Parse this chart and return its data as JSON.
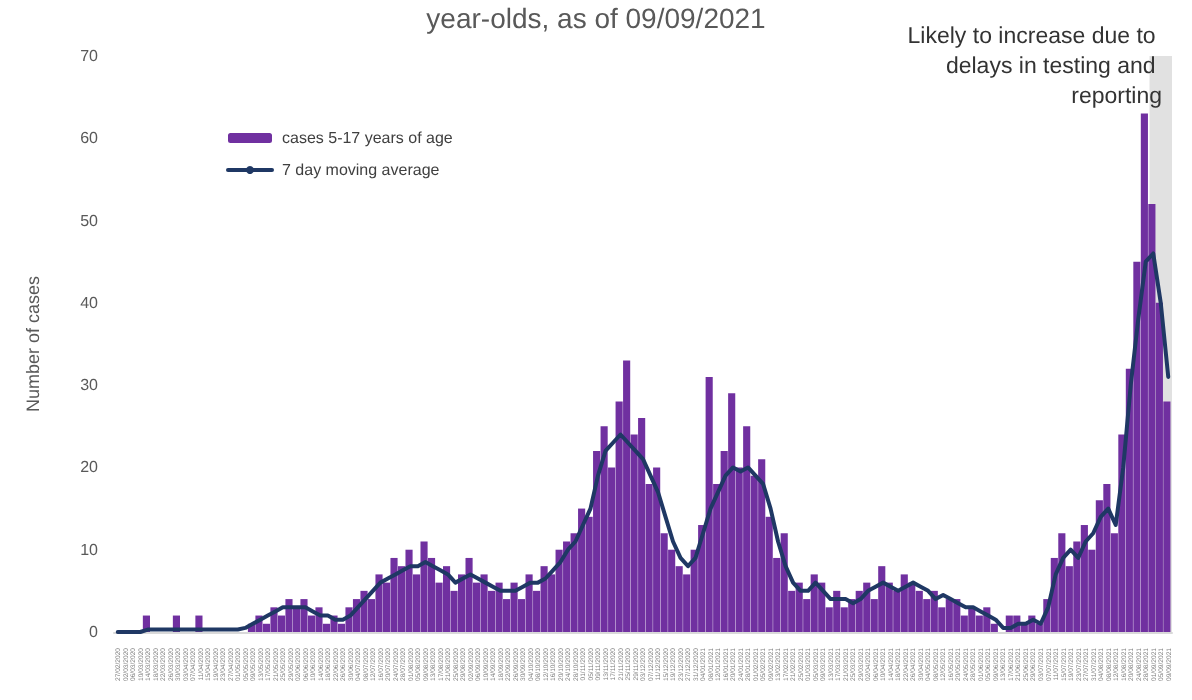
{
  "chart_data": {
    "type": "bar",
    "title": "year-olds, as of 09/09/2021",
    "ylabel": "Number of cases",
    "categories": [
      "27/02/2020",
      "02/03/2020",
      "06/03/2020",
      "10/03/2020",
      "14/03/2020",
      "18/03/2020",
      "22/03/2020",
      "26/03/2020",
      "30/03/2020",
      "03/04/2020",
      "07/04/2020",
      "11/04/2020",
      "15/04/2020",
      "19/04/2020",
      "23/04/2020",
      "27/04/2020",
      "01/05/2020",
      "05/05/2020",
      "09/05/2020",
      "13/05/2020",
      "17/05/2020",
      "21/05/2020",
      "25/05/2020",
      "29/05/2020",
      "02/06/2020",
      "06/06/2020",
      "10/06/2020",
      "14/06/2020",
      "18/06/2020",
      "22/06/2020",
      "26/06/2020",
      "30/06/2020",
      "04/07/2020",
      "08/07/2020",
      "12/07/2020",
      "16/07/2020",
      "20/07/2020",
      "24/07/2020",
      "28/07/2020",
      "01/08/2020",
      "05/08/2020",
      "09/08/2020",
      "13/08/2020",
      "17/08/2020",
      "21/08/2020",
      "25/08/2020",
      "29/08/2020",
      "02/09/2020",
      "06/09/2020",
      "10/09/2020",
      "14/09/2020",
      "18/09/2020",
      "22/09/2020",
      "26/09/2020",
      "30/09/2020",
      "04/10/2020",
      "08/10/2020",
      "12/10/2020",
      "16/10/2020",
      "20/10/2020",
      "24/10/2020",
      "28/10/2020",
      "01/11/2020",
      "05/11/2020",
      "09/11/2020",
      "13/11/2020",
      "17/11/2020",
      "21/11/2020",
      "25/11/2020",
      "29/11/2020",
      "03/12/2020",
      "07/12/2020",
      "11/12/2020",
      "15/12/2020",
      "19/12/2020",
      "23/12/2020",
      "27/12/2020",
      "31/12/2020",
      "04/01/2021",
      "08/01/2021",
      "12/01/2021",
      "16/01/2021",
      "20/01/2021",
      "24/01/2021",
      "28/01/2021",
      "01/02/2021",
      "05/02/2021",
      "09/02/2021",
      "13/02/2021",
      "17/02/2021",
      "21/02/2021",
      "25/02/2021",
      "01/03/2021",
      "05/03/2021",
      "09/03/2021",
      "13/03/2021",
      "17/03/2021",
      "21/03/2021",
      "25/03/2021",
      "29/03/2021",
      "02/04/2021",
      "06/04/2021",
      "10/04/2021",
      "14/04/2021",
      "18/04/2021",
      "22/04/2021",
      "26/04/2021",
      "30/04/2021",
      "04/05/2021",
      "08/05/2021",
      "12/05/2021",
      "16/05/2021",
      "20/05/2021",
      "24/05/2021",
      "28/05/2021",
      "01/06/2021",
      "05/06/2021",
      "09/06/2021",
      "13/06/2021",
      "17/06/2021",
      "21/06/2021",
      "25/06/2021",
      "29/06/2021",
      "03/07/2021",
      "07/07/2021",
      "11/07/2021",
      "15/07/2021",
      "19/07/2021",
      "23/07/2021",
      "27/07/2021",
      "31/07/2021",
      "04/08/2021",
      "08/08/2021",
      "12/08/2021",
      "16/08/2021",
      "20/08/2021",
      "24/08/2021",
      "28/08/2021",
      "01/09/2021",
      "05/09/2021",
      "09/09/2021"
    ],
    "series": [
      {
        "name": "cases 5-17 years of age",
        "color": "#7030a0",
        "values": [
          0,
          0,
          0,
          0,
          2,
          0,
          0,
          0,
          2,
          0,
          0,
          2,
          0,
          0,
          0,
          0,
          0,
          0,
          1,
          2,
          1,
          3,
          2,
          4,
          3,
          4,
          2,
          3,
          1,
          2,
          1,
          3,
          4,
          5,
          4,
          7,
          6,
          9,
          8,
          10,
          7,
          11,
          9,
          6,
          8,
          5,
          7,
          9,
          6,
          7,
          5,
          6,
          4,
          6,
          4,
          7,
          5,
          8,
          7,
          10,
          11,
          12,
          15,
          14,
          22,
          25,
          20,
          28,
          33,
          24,
          26,
          18,
          20,
          12,
          10,
          8,
          7,
          10,
          13,
          31,
          18,
          22,
          29,
          20,
          25,
          19,
          21,
          14,
          9,
          12,
          5,
          6,
          4,
          7,
          6,
          3,
          5,
          3,
          4,
          5,
          6,
          4,
          8,
          6,
          5,
          7,
          6,
          5,
          4,
          5,
          3,
          4,
          4,
          2,
          3,
          2,
          3,
          1,
          0,
          2,
          2,
          1,
          2,
          1,
          4,
          9,
          12,
          8,
          11,
          13,
          10,
          16,
          18,
          12,
          24,
          32,
          45,
          63,
          52,
          40,
          28
        ]
      },
      {
        "name": "7 day moving average",
        "type": "line",
        "color": "#1f3864",
        "values": [
          0,
          0,
          0,
          0,
          0.3,
          0.3,
          0.3,
          0.3,
          0.3,
          0.3,
          0.3,
          0.3,
          0.3,
          0.3,
          0.3,
          0.3,
          0.3,
          0.5,
          1,
          1.5,
          2,
          2.5,
          3,
          3,
          3,
          3,
          2.5,
          2,
          2,
          1.5,
          1.5,
          2,
          3,
          4,
          5,
          6,
          6.5,
          7,
          7.5,
          8,
          8,
          8.5,
          8,
          7.5,
          7,
          6,
          6.5,
          7,
          6.5,
          6,
          5.5,
          5,
          5,
          5,
          5.5,
          6,
          6,
          6.5,
          7.5,
          8.5,
          10,
          11,
          13,
          15,
          19,
          22,
          23,
          24,
          23,
          22,
          21,
          19,
          17,
          14,
          11,
          9,
          8,
          9,
          12,
          15,
          17,
          19,
          20,
          19.5,
          20,
          19,
          18,
          15,
          11,
          8,
          6,
          5,
          5,
          6,
          5,
          4,
          4,
          4,
          3.5,
          4,
          5,
          5.5,
          6,
          5.5,
          5,
          5.5,
          6,
          5.5,
          5,
          4,
          4.5,
          4,
          3.5,
          3,
          3,
          2.5,
          2,
          1.5,
          0.5,
          0.5,
          1,
          1,
          1.5,
          1,
          3,
          7,
          9,
          10,
          9,
          11,
          12,
          14,
          15,
          13,
          20,
          30,
          38,
          45,
          46,
          40,
          31
        ]
      }
    ],
    "bands": [
      {
        "axis": "x",
        "from": "01/09/2021",
        "to": "09/09/2021",
        "label": "Likely to increase due to delays in testing and reporting",
        "color": "#d9d9d9"
      }
    ],
    "ylim": [
      0,
      70
    ],
    "yticks": [
      0,
      10,
      20,
      30,
      40,
      50,
      60,
      70
    ],
    "grid": false,
    "legend": "top left",
    "marker": "none",
    "line_style": "solid"
  }
}
